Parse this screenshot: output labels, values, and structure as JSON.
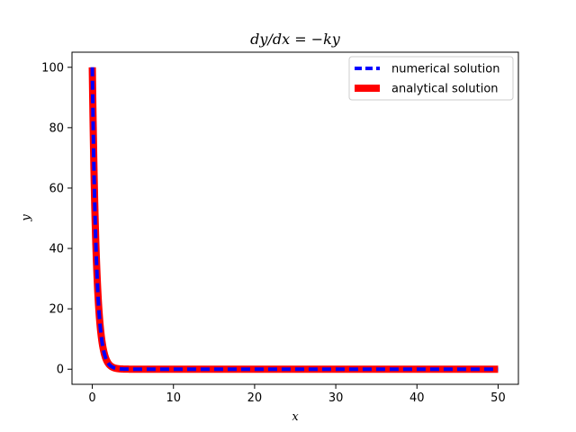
{
  "chart_data": {
    "type": "line",
    "title": "dy/dx = −ky",
    "xlabel": "x",
    "ylabel": "y",
    "xlim": [
      -2.5,
      52.5
    ],
    "ylim": [
      -5,
      105
    ],
    "xticks": [
      0,
      10,
      20,
      30,
      40,
      50
    ],
    "yticks": [
      0,
      20,
      40,
      60,
      80,
      100
    ],
    "grid": false,
    "legend_position": "top-right",
    "y0": 100,
    "k": 2,
    "series": [
      {
        "name": "numerical solution",
        "color": "#0000ff",
        "style": "dashed",
        "x": [
          0,
          0.1,
          0.2,
          0.3,
          0.4,
          0.5,
          0.6,
          0.8,
          1.0,
          1.25,
          1.5,
          2.0,
          2.5,
          3.0,
          4.0,
          5.0,
          10,
          20,
          30,
          40,
          50
        ],
        "values": [
          100,
          81.87,
          67.03,
          54.88,
          44.93,
          36.79,
          30.12,
          20.19,
          13.53,
          8.21,
          4.98,
          1.83,
          0.67,
          0.25,
          0.03,
          0.0,
          0,
          0,
          0,
          0,
          0
        ]
      },
      {
        "name": "analytical solution",
        "color": "#ff0000",
        "style": "solid",
        "x": [
          0,
          0.1,
          0.2,
          0.3,
          0.4,
          0.5,
          0.6,
          0.8,
          1.0,
          1.25,
          1.5,
          2.0,
          2.5,
          3.0,
          4.0,
          5.0,
          10,
          20,
          30,
          40,
          50
        ],
        "values": [
          100,
          81.87,
          67.03,
          54.88,
          44.93,
          36.79,
          30.12,
          20.19,
          13.53,
          8.21,
          4.98,
          1.83,
          0.67,
          0.25,
          0.03,
          0.0,
          0,
          0,
          0,
          0,
          0
        ]
      }
    ]
  }
}
